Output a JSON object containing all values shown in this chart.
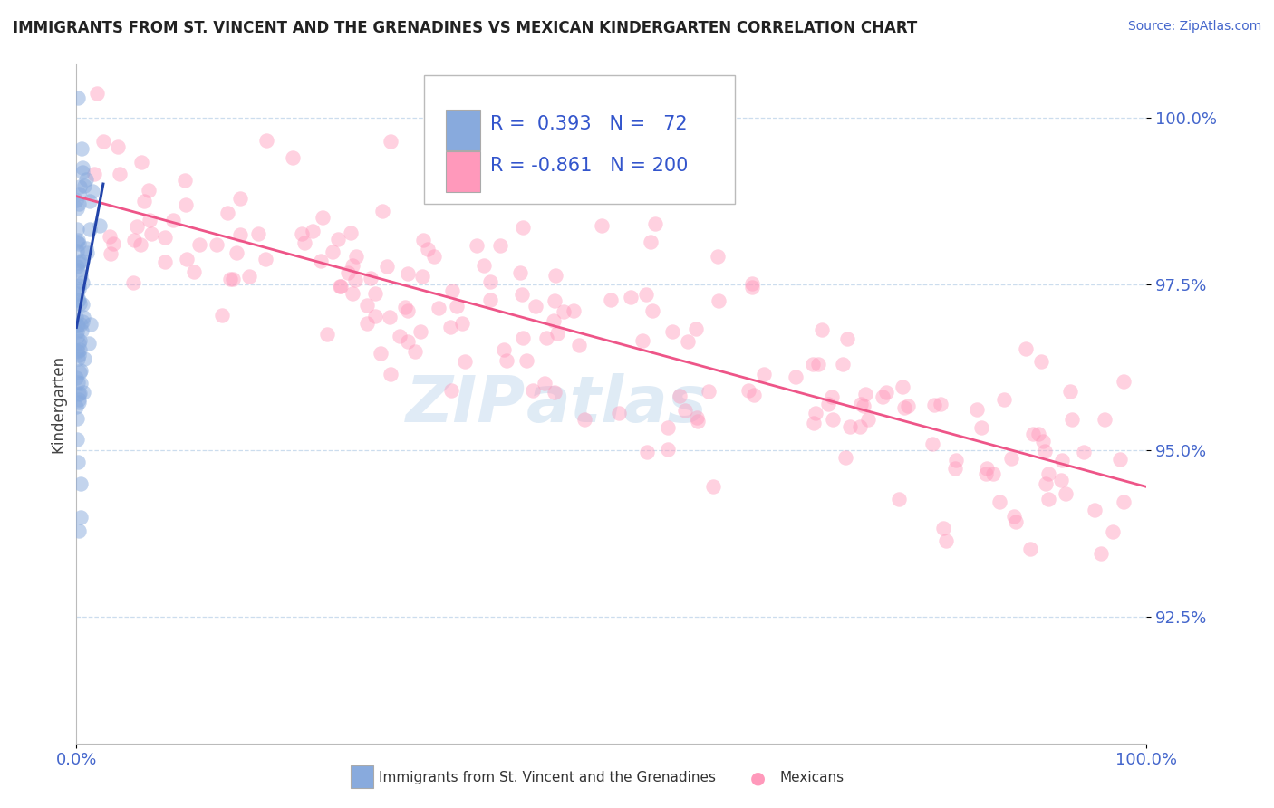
{
  "title": "IMMIGRANTS FROM ST. VINCENT AND THE GRENADINES VS MEXICAN KINDERGARTEN CORRELATION CHART",
  "source": "Source: ZipAtlas.com",
  "ylabel": "Kindergarten",
  "blue_R": 0.393,
  "blue_N": 72,
  "pink_R": -0.861,
  "pink_N": 200,
  "blue_dot_color": "#88AADD",
  "pink_dot_color": "#FF99BB",
  "blue_line_color": "#2244AA",
  "pink_line_color": "#EE5588",
  "watermark_color": "#D0E4F4",
  "xlim_min": 0.0,
  "xlim_max": 1.0,
  "ylim_min": 0.906,
  "ylim_max": 1.008,
  "yticks": [
    0.925,
    0.95,
    0.975,
    1.0
  ],
  "ytick_labels": [
    "92.5%",
    "95.0%",
    "97.5%",
    "100.0%"
  ],
  "xtick_positions": [
    0.0,
    1.0
  ],
  "xtick_labels": [
    "0.0%",
    "100.0%"
  ],
  "legend_label_blue": "Immigrants from St. Vincent and the Grenadines",
  "legend_label_pink": "Mexicans",
  "title_color": "#222222",
  "axis_tick_color": "#4466CC",
  "grid_color": "#CCDDEE",
  "ylabel_color": "#444444"
}
